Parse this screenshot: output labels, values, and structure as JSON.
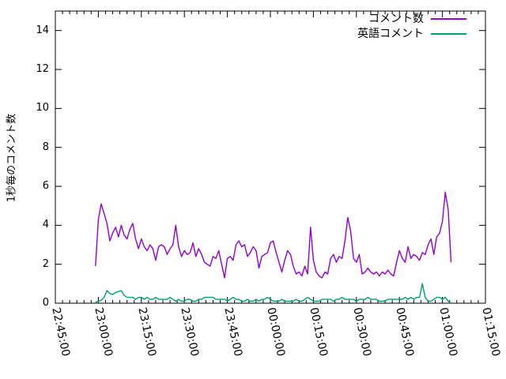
{
  "colors": {
    "background": "#ffffff",
    "axis": "#000000",
    "text": "#000000"
  },
  "chart_data": {
    "type": "line",
    "title": "",
    "xlabel": "",
    "ylabel": "1秒毎のコメント数",
    "ylim": [
      0,
      15
    ],
    "y_ticks": [
      0,
      2,
      4,
      6,
      8,
      10,
      12,
      14
    ],
    "x_ticks": [
      "22:45:00",
      "23:00:00",
      "23:15:00",
      "23:30:00",
      "23:45:00",
      "00:00:00",
      "00:15:00",
      "00:30:00",
      "00:45:00",
      "01:00:00",
      "01:15:00"
    ],
    "x_range_minutes": [
      0,
      150
    ],
    "x_major_interval_min": 15,
    "x_minor_per_major": 6,
    "grid": false,
    "legend_position": "top-right-inside",
    "series": [
      {
        "name": "コメント数",
        "color": "#9400d3",
        "start_minute": 14,
        "step_minute": 1,
        "values": [
          1.9,
          4.3,
          5.1,
          4.6,
          4.1,
          3.2,
          3.6,
          3.9,
          3.4,
          4.0,
          3.5,
          3.3,
          3.8,
          4.1,
          3.3,
          2.8,
          3.3,
          2.9,
          2.7,
          3.0,
          2.8,
          2.2,
          2.9,
          3.0,
          2.9,
          2.5,
          2.8,
          3.0,
          4.0,
          2.9,
          2.4,
          2.7,
          2.5,
          2.6,
          3.1,
          2.4,
          2.8,
          2.5,
          2.1,
          2.0,
          1.9,
          2.4,
          2.3,
          2.7,
          2.0,
          1.3,
          2.3,
          2.4,
          2.2,
          3.0,
          3.2,
          2.9,
          3.0,
          2.4,
          2.6,
          2.9,
          2.7,
          1.8,
          2.4,
          2.5,
          2.6,
          3.1,
          3.2,
          2.6,
          2.1,
          1.6,
          2.2,
          2.7,
          2.5,
          1.9,
          1.5,
          1.6,
          1.4,
          1.9,
          1.5,
          3.9,
          2.2,
          1.6,
          1.4,
          1.3,
          1.6,
          1.5,
          2.3,
          2.5,
          2.1,
          2.4,
          2.3,
          3.2,
          4.4,
          3.7,
          2.3,
          2.1,
          2.5,
          1.5,
          1.6,
          1.8,
          1.6,
          1.5,
          1.6,
          1.4,
          1.6,
          1.5,
          1.7,
          1.5,
          1.4,
          2.1,
          2.7,
          2.3,
          2.1,
          2.9,
          2.3,
          2.5,
          2.4,
          2.2,
          2.6,
          2.5,
          3.0,
          3.3,
          2.5,
          3.4,
          3.6,
          4.2,
          5.7,
          4.8,
          2.1
        ]
      },
      {
        "name": "英語コメント",
        "color": "#009e73",
        "start_minute": 14,
        "step_minute": 1,
        "values": [
          0.05,
          0.1,
          0.15,
          0.3,
          0.65,
          0.5,
          0.45,
          0.55,
          0.6,
          0.65,
          0.4,
          0.3,
          0.3,
          0.3,
          0.2,
          0.3,
          0.3,
          0.2,
          0.3,
          0.2,
          0.2,
          0.3,
          0.2,
          0.2,
          0.2,
          0.2,
          0.3,
          0.2,
          0.1,
          0.2,
          0.1,
          0.1,
          0.2,
          0.2,
          0.1,
          0.1,
          0.2,
          0.2,
          0.3,
          0.3,
          0.3,
          0.3,
          0.2,
          0.2,
          0.2,
          0.2,
          0.1,
          0.2,
          0.3,
          0.2,
          0.2,
          0.1,
          0.1,
          0.2,
          0.1,
          0.1,
          0.2,
          0.1,
          0.2,
          0.2,
          0.3,
          0.2,
          0.1,
          0.1,
          0.1,
          0.2,
          0.1,
          0.1,
          0.1,
          0.1,
          0.2,
          0.1,
          0.1,
          0.2,
          0.3,
          0.2,
          0.1,
          0.1,
          0.1,
          0.2,
          0.2,
          0.2,
          0.2,
          0.1,
          0.2,
          0.2,
          0.3,
          0.2,
          0.2,
          0.2,
          0.2,
          0.1,
          0.2,
          0.2,
          0.2,
          0.3,
          0.2,
          0.2,
          0.2,
          0.1,
          0.1,
          0.1,
          0.2,
          0.2,
          0.2,
          0.2,
          0.2,
          0.2,
          0.3,
          0.2,
          0.3,
          0.2,
          0.3,
          0.3,
          1.0,
          0.3,
          0.1,
          0.1,
          0.2,
          0.3,
          0.3,
          0.2,
          0.3,
          0.1,
          0.0
        ]
      }
    ]
  }
}
